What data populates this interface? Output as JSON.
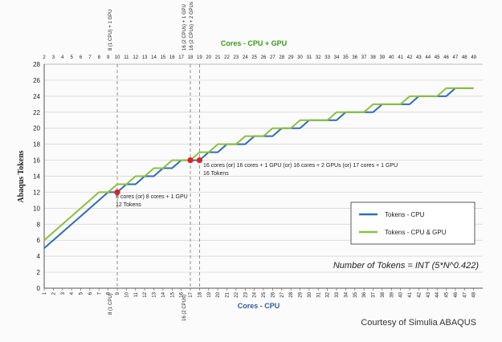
{
  "chart_data": {
    "type": "line",
    "ylabel": "Abaqus Tokens",
    "xlabel_bottom": "Cores - CPU",
    "xlabel_top": "Cores - CPU + GPU",
    "ylim": [
      0,
      28
    ],
    "yticks": [
      0,
      2,
      4,
      6,
      8,
      10,
      12,
      14,
      16,
      18,
      20,
      22,
      24,
      26,
      28
    ],
    "x_bottom_range": [
      1,
      48
    ],
    "x_top_range": [
      2,
      49
    ],
    "grid": true,
    "series": [
      {
        "name": "Tokens - CPU",
        "color": "#2e6db5",
        "x": [
          1,
          2,
          3,
          4,
          5,
          6,
          7,
          8,
          9,
          10,
          11,
          12,
          13,
          14,
          15,
          16,
          17,
          18,
          19,
          20,
          21,
          22,
          23,
          24,
          25,
          26,
          27,
          28,
          29,
          30,
          31,
          32,
          33,
          34,
          35,
          36,
          37,
          38,
          39,
          40,
          41,
          42,
          43,
          44,
          45,
          46,
          47,
          48
        ],
        "values": [
          5,
          6,
          7,
          8,
          9,
          10,
          11,
          12,
          12,
          13,
          13,
          14,
          14,
          15,
          15,
          16,
          16,
          16,
          17,
          17,
          18,
          18,
          18,
          19,
          19,
          19,
          20,
          20,
          20,
          21,
          21,
          21,
          21,
          22,
          22,
          22,
          22,
          23,
          23,
          23,
          23,
          24,
          24,
          24,
          24,
          25,
          25,
          25
        ]
      },
      {
        "name": "Tokens - CPU & GPU",
        "color": "#8cbf3f",
        "x": [
          1,
          2,
          3,
          4,
          5,
          6,
          7,
          8,
          9,
          10,
          11,
          12,
          13,
          14,
          15,
          16,
          17,
          18,
          19,
          20,
          21,
          22,
          23,
          24,
          25,
          26,
          27,
          28,
          29,
          30,
          31,
          32,
          33,
          34,
          35,
          36,
          37,
          38,
          39,
          40,
          41,
          42,
          43,
          44,
          45,
          46,
          47,
          48
        ],
        "values": [
          6,
          7,
          8,
          9,
          10,
          11,
          12,
          12,
          13,
          13,
          14,
          14,
          15,
          15,
          16,
          16,
          16,
          17,
          17,
          18,
          18,
          18,
          19,
          19,
          19,
          20,
          20,
          20,
          21,
          21,
          21,
          21,
          22,
          22,
          22,
          22,
          23,
          23,
          23,
          23,
          24,
          24,
          24,
          24,
          25,
          25,
          25,
          25
        ]
      }
    ],
    "highlight_points": [
      {
        "x": 9,
        "y": 12,
        "color": "#e02020"
      },
      {
        "x": 17,
        "y": 16,
        "color": "#e02020"
      },
      {
        "x": 18,
        "y": 16,
        "color": "#e02020"
      }
    ],
    "vertical_lines": [
      {
        "x": 9,
        "bottom_label": "8 (1 CPU)",
        "top_label": "8 (1 CPU) + 1 GPU"
      },
      {
        "x": 17,
        "bottom_label": "16 (2 CPUs)",
        "top_label": "16 (2 CPUs) + 1 GPU"
      },
      {
        "x": 18,
        "bottom_label": "",
        "top_label": "16 (2 CPUs) + 2 GPUs"
      }
    ],
    "annotations": [
      {
        "line1": "8 cores (or) 8 cores + 1 GPU",
        "line2": "12 Tokens"
      },
      {
        "line1": "16 cores (or) 16 cores + 1 GPU (or) 16 cores + 2 GPUs (or) 17 cores + 1 GPU",
        "line2": "16 Tokens"
      }
    ],
    "formula": "Number of Tokens = INT (5*N^0.422)",
    "legend_position": "right"
  },
  "credit": "Courtesy of Simulia ABAQUS"
}
